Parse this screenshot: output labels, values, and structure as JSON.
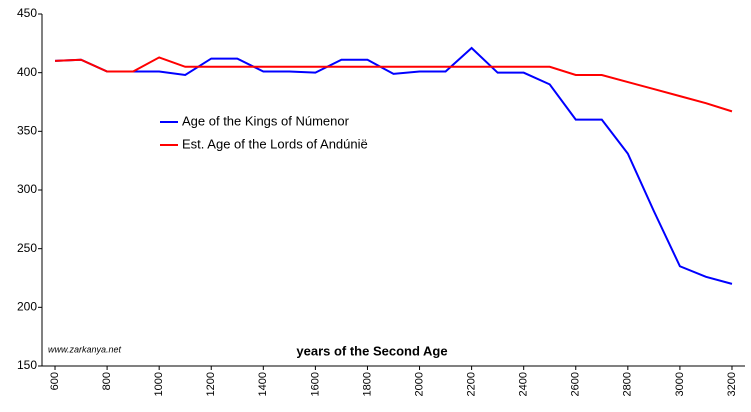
{
  "chart_data": {
    "type": "line",
    "x_label": "years of the Second Age",
    "watermark": "www.zarkanya.net",
    "x": [
      600,
      700,
      800,
      900,
      1000,
      1100,
      1200,
      1300,
      1400,
      1500,
      1600,
      1700,
      1800,
      1900,
      2000,
      2100,
      2200,
      2300,
      2400,
      2500,
      2600,
      2700,
      2800,
      2900,
      3000,
      3100,
      3200
    ],
    "series": [
      {
        "name": "Age of the Kings of Númenor",
        "color": "#0000ff",
        "values": [
          410,
          411,
          401,
          401,
          401,
          398,
          412,
          412,
          401,
          401,
          400,
          411,
          411,
          399,
          401,
          401,
          421,
          400,
          400,
          390,
          360,
          360,
          331,
          282,
          235,
          226,
          220
        ]
      },
      {
        "name": "Est. Age of the Lords of Andúnië",
        "color": "#ff0000",
        "values": [
          410,
          411,
          401,
          401,
          413,
          405,
          405,
          405,
          405,
          405,
          405,
          405,
          405,
          405,
          405,
          405,
          405,
          405,
          405,
          405,
          398,
          398,
          392,
          386,
          380,
          374,
          367
        ]
      }
    ],
    "xlim": [
      550,
      3250
    ],
    "xticks": [
      600,
      800,
      1000,
      1200,
      1400,
      1600,
      1800,
      2000,
      2200,
      2400,
      2600,
      2800,
      3000,
      3200
    ],
    "ylim": [
      150,
      450
    ],
    "yticks": [
      150,
      200,
      250,
      300,
      350,
      400,
      450
    ],
    "legend": "upper-left-inside"
  }
}
